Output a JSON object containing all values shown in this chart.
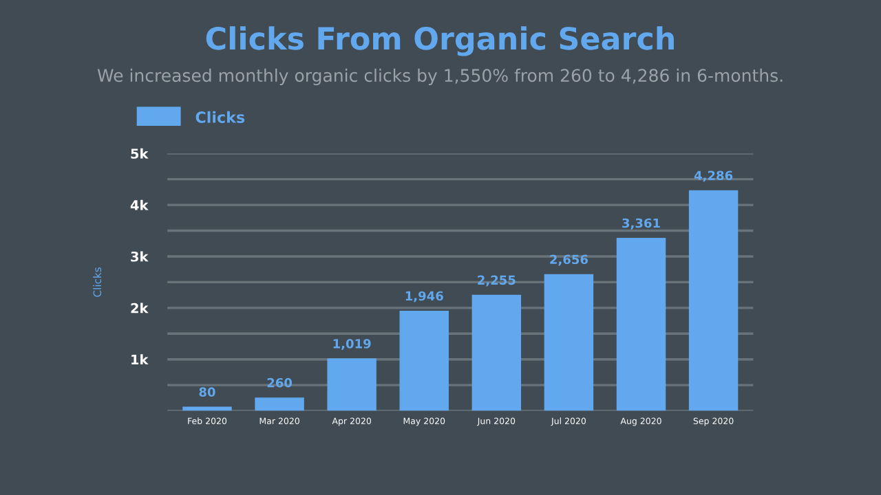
{
  "chart_data": {
    "type": "bar",
    "title": "Clicks From Organic Search",
    "subtitle": "We increased monthly organic clicks by 1,550% from 260 to 4,286 in 6-months.",
    "ylabel": "Clicks",
    "categories": [
      "Feb 2020",
      "Mar 2020",
      "Apr 2020",
      "May 2020",
      "Jun 2020",
      "Jul 2020",
      "Aug 2020",
      "Sep 2020"
    ],
    "series": [
      {
        "name": "Clicks",
        "color": "#62a8ee",
        "values": [
          80,
          260,
          1019,
          1946,
          2255,
          2656,
          3361,
          4286
        ],
        "value_labels": [
          "80",
          "260",
          "1,019",
          "1,946",
          "2,255",
          "2,656",
          "3,361",
          "4,286"
        ]
      }
    ],
    "ylim": [
      0,
      5000
    ],
    "yticks": [
      {
        "value": 0,
        "label": null
      },
      {
        "value": 500,
        "label": null
      },
      {
        "value": 1000,
        "label": "1k"
      },
      {
        "value": 1500,
        "label": null
      },
      {
        "value": 2000,
        "label": "2k"
      },
      {
        "value": 2500,
        "label": null
      },
      {
        "value": 3000,
        "label": "3k"
      },
      {
        "value": 3500,
        "label": null
      },
      {
        "value": 4000,
        "label": "4k"
      },
      {
        "value": 4500,
        "label": null
      },
      {
        "value": 5000,
        "label": "5k"
      }
    ],
    "grid": "y",
    "legend": "top left"
  }
}
